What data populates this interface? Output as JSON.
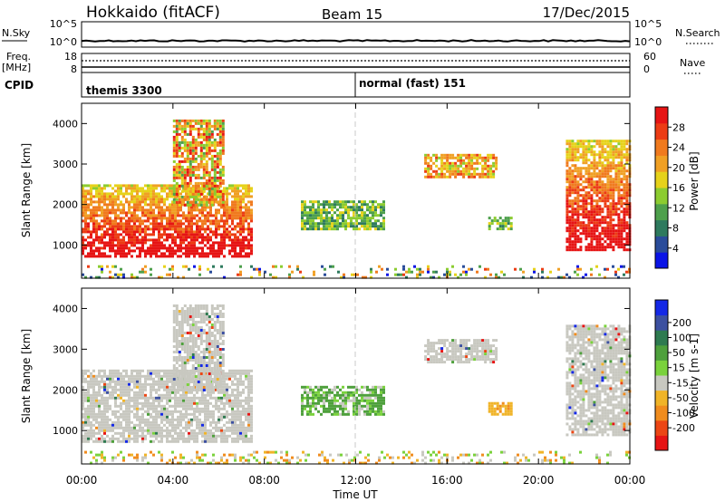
{
  "header": {
    "title": "Hokkaido (fitACF)",
    "beam": "Beam 15",
    "date": "17/Dec/2015"
  },
  "strip": {
    "nsky": {
      "label": "N.Sky",
      "ticks": [
        "10^5",
        "10^0"
      ]
    },
    "nsearch": {
      "label": "N.Search"
    },
    "freq": {
      "label": "Freq.",
      "unit": "[MHz]",
      "ticks": [
        "18",
        "8"
      ]
    },
    "nave": {
      "label": "Nave",
      "ticks": [
        "60",
        "0"
      ]
    },
    "cpid": {
      "label": "CPID",
      "programs": [
        {
          "name": "themis 3300",
          "start_hour": 0
        },
        {
          "name": "normal (fast) 151",
          "start_hour": 12
        }
      ]
    }
  },
  "colors": {
    "power": [
      "#0a14e6",
      "#2a4c9a",
      "#2e7a5e",
      "#4ea04c",
      "#8ccc30",
      "#e6d21a",
      "#f0a024",
      "#f07a1e",
      "#ec3c14",
      "#e61414"
    ],
    "velocity": [
      "#1428e6",
      "#3c50a0",
      "#2e7a50",
      "#4ea03c",
      "#7ad23c",
      "#c8c8c0",
      "#f0b428",
      "#f08c1e",
      "#ec4614",
      "#e61414"
    ]
  },
  "chart_data": [
    {
      "type": "heatmap",
      "name": "power",
      "xlabel": "",
      "ylabel": "Slant Range [km]",
      "xlim": [
        0,
        24
      ],
      "ylim": [
        180,
        4500
      ],
      "yticks": [
        1000,
        2000,
        3000,
        4000
      ],
      "colorbar": {
        "label": "Power [dB]",
        "range": [
          0,
          32
        ],
        "ticks": [
          4,
          8,
          12,
          16,
          20,
          24,
          28
        ]
      },
      "echo_regions": [
        {
          "t0": 0.0,
          "t1": 7.4,
          "r0": 750,
          "r1": 2500,
          "level": "high"
        },
        {
          "t0": 4.0,
          "t1": 6.2,
          "r0": 2000,
          "r1": 4100,
          "level": "mixed"
        },
        {
          "t0": 9.6,
          "t1": 13.2,
          "r0": 1400,
          "r1": 2100,
          "level": "low"
        },
        {
          "t0": 15.0,
          "t1": 18.2,
          "r0": 2700,
          "r1": 3250,
          "level": "mid"
        },
        {
          "t0": 17.8,
          "t1": 18.8,
          "r0": 1400,
          "r1": 1700,
          "level": "low"
        },
        {
          "t0": 21.2,
          "t1": 24.0,
          "r0": 900,
          "r1": 3600,
          "level": "high"
        },
        {
          "t0": 0.0,
          "t1": 24.0,
          "r0": 200,
          "r1": 500,
          "level": "noise"
        }
      ]
    },
    {
      "type": "heatmap",
      "name": "velocity",
      "xlabel": "Time UT",
      "ylabel": "Slant Range [km]",
      "xlim": [
        0,
        24
      ],
      "xticks": [
        "00:00",
        "04:00",
        "08:00",
        "12:00",
        "16:00",
        "20:00",
        "00:00"
      ],
      "ylim": [
        180,
        4500
      ],
      "yticks": [
        1000,
        2000,
        3000,
        4000
      ],
      "colorbar": {
        "label": "Velocity [m s-1]",
        "range": [
          -250,
          250
        ],
        "ticks": [
          200,
          100,
          50,
          15,
          -15,
          -50,
          -100,
          -200
        ]
      },
      "echo_regions": [
        {
          "t0": 0.0,
          "t1": 7.4,
          "r0": 750,
          "r1": 2500,
          "level": "ground-scatter"
        },
        {
          "t0": 4.0,
          "t1": 6.2,
          "r0": 2000,
          "r1": 4100,
          "level": "ground-scatter"
        },
        {
          "t0": 9.6,
          "t1": 13.2,
          "r0": 1400,
          "r1": 2100,
          "level": "positive-50"
        },
        {
          "t0": 15.0,
          "t1": 18.2,
          "r0": 2700,
          "r1": 3250,
          "level": "ground-scatter"
        },
        {
          "t0": 17.8,
          "t1": 18.8,
          "r0": 1400,
          "r1": 1700,
          "level": "negative-50"
        },
        {
          "t0": 21.2,
          "t1": 24.0,
          "r0": 900,
          "r1": 3600,
          "level": "ground-scatter"
        },
        {
          "t0": 0.0,
          "t1": 24.0,
          "r0": 200,
          "r1": 500,
          "level": "noise"
        }
      ]
    }
  ]
}
